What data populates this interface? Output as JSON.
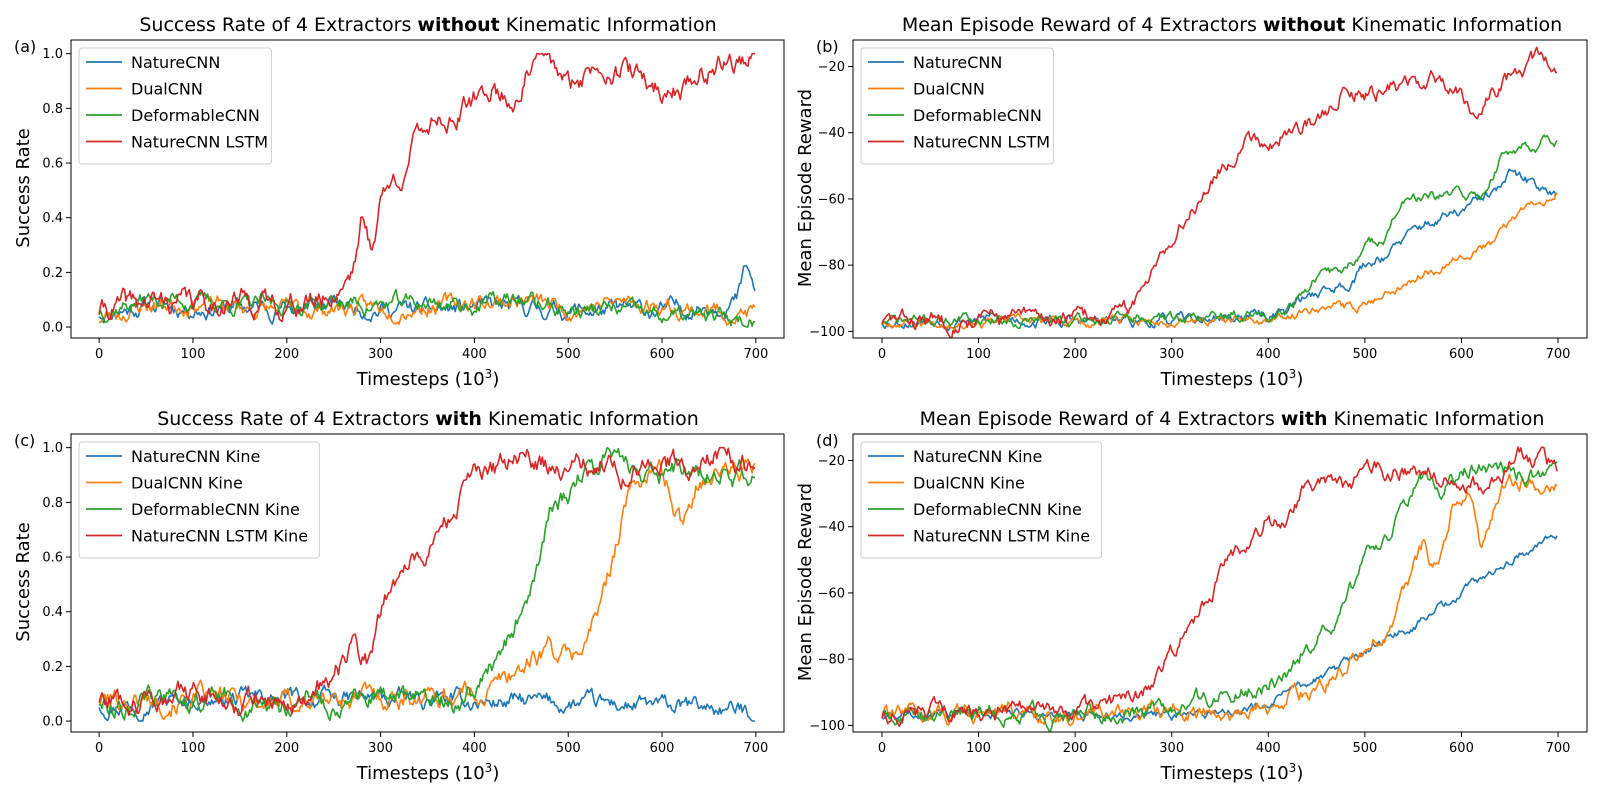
{
  "chart_data": [
    {
      "type": "line",
      "panel_label": "(a)",
      "title_parts": [
        "Success Rate of 4 Extractors ",
        "without",
        " Kinematic Information"
      ],
      "xlabel": "Timesteps (10",
      "xlabel_sup": "3",
      "xlabel_close": ")",
      "ylabel": "Success Rate",
      "xlim": [
        -30,
        730
      ],
      "ylim": [
        -0.04,
        1.05
      ],
      "xticks": [
        0,
        100,
        200,
        300,
        400,
        500,
        600,
        700
      ],
      "yticks": [
        0.0,
        0.2,
        0.4,
        0.6,
        0.8,
        1.0
      ],
      "ytick_labels": [
        "0.0",
        "0.2",
        "0.4",
        "0.6",
        "0.8",
        "1.0"
      ],
      "legend_position": "top-left",
      "series": [
        {
          "name": "NatureCNN",
          "color": "#1f77b4",
          "seed": 11,
          "x": [
            0,
            50,
            100,
            150,
            200,
            250,
            300,
            350,
            400,
            450,
            500,
            550,
            600,
            650,
            680,
            690,
            700
          ],
          "y": [
            0.05,
            0.08,
            0.07,
            0.07,
            0.07,
            0.08,
            0.07,
            0.06,
            0.07,
            0.07,
            0.06,
            0.06,
            0.06,
            0.08,
            0.1,
            0.22,
            0.1
          ],
          "noise": 0.022
        },
        {
          "name": "DualCNN",
          "color": "#ff7f0e",
          "seed": 23,
          "x": [
            0,
            50,
            100,
            150,
            200,
            250,
            300,
            350,
            400,
            450,
            500,
            550,
            600,
            650,
            700
          ],
          "y": [
            0.03,
            0.08,
            0.09,
            0.07,
            0.06,
            0.07,
            0.07,
            0.08,
            0.09,
            0.1,
            0.07,
            0.09,
            0.08,
            0.06,
            0.05
          ],
          "noise": 0.022
        },
        {
          "name": "DeformableCNN",
          "color": "#2ca02c",
          "seed": 37,
          "x": [
            0,
            50,
            100,
            150,
            200,
            250,
            300,
            350,
            400,
            450,
            500,
            550,
            600,
            650,
            700
          ],
          "y": [
            0.06,
            0.1,
            0.1,
            0.08,
            0.08,
            0.09,
            0.08,
            0.09,
            0.08,
            0.1,
            0.06,
            0.06,
            0.04,
            0.03,
            0.03
          ],
          "noise": 0.022
        },
        {
          "name": "NatureCNN LSTM",
          "color": "#d62728",
          "seed": 41,
          "x": [
            0,
            50,
            100,
            150,
            200,
            230,
            250,
            270,
            280,
            290,
            300,
            320,
            340,
            360,
            380,
            400,
            420,
            440,
            460,
            480,
            500,
            520,
            540,
            560,
            580,
            600,
            620,
            640,
            660,
            680,
            700
          ],
          "y": [
            0.06,
            0.09,
            0.09,
            0.1,
            0.08,
            0.09,
            0.12,
            0.22,
            0.4,
            0.28,
            0.48,
            0.55,
            0.7,
            0.78,
            0.76,
            0.82,
            0.88,
            0.82,
            0.95,
            0.97,
            0.87,
            0.93,
            0.97,
            0.94,
            0.9,
            0.86,
            0.88,
            0.92,
            0.97,
            0.97,
            0.98
          ],
          "noise": 0.03
        }
      ]
    },
    {
      "type": "line",
      "panel_label": "(b)",
      "title_parts": [
        "Mean Episode Reward of 4 Extractors ",
        "without",
        " Kinematic Information"
      ],
      "xlabel": "Timesteps (10",
      "xlabel_sup": "3",
      "xlabel_close": ")",
      "ylabel": "Mean Episode Reward",
      "xlim": [
        -30,
        730
      ],
      "ylim": [
        -102,
        -12
      ],
      "xticks": [
        0,
        100,
        200,
        300,
        400,
        500,
        600,
        700
      ],
      "yticks": [
        -100,
        -80,
        -60,
        -40,
        -20
      ],
      "ytick_labels": [
        "−100",
        "−80",
        "−60",
        "−40",
        "−20"
      ],
      "legend_position": "top-left",
      "series": [
        {
          "name": "NatureCNN",
          "color": "#1f77b4",
          "seed": 53,
          "x": [
            0,
            100,
            200,
            300,
            400,
            420,
            450,
            480,
            500,
            530,
            560,
            600,
            640,
            650,
            680,
            700
          ],
          "y": [
            -97,
            -96,
            -97,
            -97,
            -95,
            -93,
            -88,
            -86,
            -80,
            -75,
            -68,
            -64,
            -57,
            -53,
            -56,
            -57
          ],
          "noise": 1.2
        },
        {
          "name": "DualCNN",
          "color": "#ff7f0e",
          "seed": 67,
          "x": [
            0,
            100,
            200,
            300,
            400,
            420,
            450,
            480,
            500,
            520,
            550,
            580,
            600,
            630,
            660,
            700
          ],
          "y": [
            -97,
            -97,
            -97,
            -97,
            -97,
            -96,
            -92,
            -93,
            -92,
            -88,
            -84,
            -80,
            -76,
            -74,
            -64,
            -57
          ],
          "noise": 1.0
        },
        {
          "name": "DeformableCNN",
          "color": "#2ca02c",
          "seed": 71,
          "x": [
            0,
            100,
            200,
            300,
            400,
            420,
            450,
            480,
            500,
            520,
            540,
            560,
            580,
            600,
            620,
            640,
            660,
            700
          ],
          "y": [
            -97,
            -96,
            -97,
            -96,
            -95,
            -92,
            -84,
            -81,
            -75,
            -71,
            -61,
            -60,
            -60,
            -58,
            -60,
            -48,
            -44,
            -42
          ],
          "noise": 1.2
        },
        {
          "name": "NatureCNN LSTM",
          "color": "#d62728",
          "seed": 83,
          "x": [
            0,
            100,
            200,
            250,
            270,
            290,
            300,
            320,
            340,
            360,
            380,
            400,
            420,
            440,
            460,
            480,
            500,
            520,
            540,
            560,
            580,
            600,
            620,
            640,
            660,
            680,
            700
          ],
          "y": [
            -97,
            -96,
            -96,
            -95,
            -88,
            -73,
            -73,
            -63,
            -54,
            -48,
            -40,
            -43,
            -40,
            -37,
            -35,
            -24,
            -28,
            -27,
            -25,
            -26,
            -24,
            -28,
            -34,
            -25,
            -22,
            -18,
            -21
          ],
          "noise": 1.8
        }
      ]
    },
    {
      "type": "line",
      "panel_label": "(c)",
      "title_parts": [
        "Success Rate of 4 Extractors ",
        "with",
        " Kinematic Information"
      ],
      "xlabel": "Timesteps (10",
      "xlabel_sup": "3",
      "xlabel_close": ")",
      "ylabel": "Success Rate",
      "xlim": [
        -30,
        730
      ],
      "ylim": [
        -0.04,
        1.05
      ],
      "xticks": [
        0,
        100,
        200,
        300,
        400,
        500,
        600,
        700
      ],
      "yticks": [
        0.0,
        0.2,
        0.4,
        0.6,
        0.8,
        1.0
      ],
      "ytick_labels": [
        "0.0",
        "0.2",
        "0.4",
        "0.6",
        "0.8",
        "1.0"
      ],
      "legend_position": "top-left",
      "series": [
        {
          "name": "NatureCNN Kine",
          "color": "#1f77b4",
          "seed": 97,
          "x": [
            0,
            100,
            200,
            300,
            400,
            450,
            500,
            550,
            600,
            650,
            700
          ],
          "y": [
            0.06,
            0.08,
            0.08,
            0.08,
            0.07,
            0.07,
            0.06,
            0.06,
            0.05,
            0.05,
            0.03
          ],
          "noise": 0.022
        },
        {
          "name": "DualCNN Kine",
          "color": "#ff7f0e",
          "seed": 101,
          "x": [
            0,
            100,
            200,
            300,
            400,
            420,
            440,
            460,
            480,
            500,
            520,
            540,
            560,
            580,
            600,
            620,
            640,
            660,
            700
          ],
          "y": [
            0.08,
            0.08,
            0.07,
            0.09,
            0.1,
            0.12,
            0.18,
            0.22,
            0.28,
            0.22,
            0.3,
            0.48,
            0.8,
            0.9,
            0.92,
            0.72,
            0.9,
            0.92,
            0.92
          ],
          "noise": 0.028
        },
        {
          "name": "DeformableCNN Kine",
          "color": "#2ca02c",
          "seed": 113,
          "x": [
            0,
            100,
            200,
            300,
            400,
            420,
            440,
            460,
            470,
            480,
            500,
            520,
            540,
            560,
            600,
            650,
            700
          ],
          "y": [
            0.07,
            0.08,
            0.06,
            0.08,
            0.09,
            0.2,
            0.32,
            0.48,
            0.62,
            0.75,
            0.82,
            0.92,
            0.95,
            0.93,
            0.92,
            0.9,
            0.9
          ],
          "noise": 0.028
        },
        {
          "name": "NatureCNN LSTM Kine",
          "color": "#d62728",
          "seed": 127,
          "x": [
            0,
            100,
            200,
            230,
            250,
            270,
            290,
            300,
            320,
            340,
            360,
            380,
            400,
            420,
            440,
            460,
            480,
            500,
            520,
            540,
            560,
            600,
            650,
            700
          ],
          "y": [
            0.08,
            0.1,
            0.07,
            0.09,
            0.16,
            0.25,
            0.22,
            0.4,
            0.55,
            0.6,
            0.68,
            0.78,
            0.88,
            0.9,
            0.95,
            0.96,
            0.94,
            0.92,
            0.93,
            0.95,
            0.92,
            0.93,
            0.96,
            0.96
          ],
          "noise": 0.03
        }
      ]
    },
    {
      "type": "line",
      "panel_label": "(d)",
      "title_parts": [
        "Mean Episode Reward of 4 Extractors ",
        "with",
        " Kinematic Information"
      ],
      "xlabel": "Timesteps (10",
      "xlabel_sup": "3",
      "xlabel_close": ")",
      "ylabel": "Mean Episode Reward",
      "xlim": [
        -30,
        730
      ],
      "ylim": [
        -102,
        -12
      ],
      "xticks": [
        0,
        100,
        200,
        300,
        400,
        500,
        600,
        700
      ],
      "yticks": [
        -100,
        -80,
        -60,
        -40,
        -20
      ],
      "ytick_labels": [
        "−100",
        "−80",
        "−60",
        "−40",
        "−20"
      ],
      "legend_position": "top-left",
      "series": [
        {
          "name": "NatureCNN Kine",
          "color": "#1f77b4",
          "seed": 131,
          "x": [
            0,
            100,
            200,
            300,
            400,
            450,
            500,
            550,
            600,
            650,
            700
          ],
          "y": [
            -97,
            -96,
            -97,
            -97,
            -94,
            -86,
            -78,
            -70,
            -60,
            -50,
            -42
          ],
          "noise": 1.0
        },
        {
          "name": "DualCNN Kine",
          "color": "#ff7f0e",
          "seed": 139,
          "x": [
            0,
            100,
            200,
            300,
            400,
            440,
            480,
            500,
            520,
            540,
            560,
            570,
            590,
            610,
            620,
            640,
            660,
            700
          ],
          "y": [
            -97,
            -96,
            -97,
            -96,
            -95,
            -90,
            -83,
            -78,
            -72,
            -62,
            -46,
            -54,
            -36,
            -30,
            -48,
            -28,
            -26,
            -25
          ],
          "noise": 1.8
        },
        {
          "name": "DeformableCNN Kine",
          "color": "#2ca02c",
          "seed": 149,
          "x": [
            0,
            100,
            200,
            300,
            360,
            400,
            420,
            440,
            460,
            480,
            500,
            520,
            540,
            560,
            580,
            600,
            620,
            660,
            700
          ],
          "y": [
            -97,
            -96,
            -97,
            -95,
            -90,
            -88,
            -84,
            -76,
            -72,
            -65,
            -50,
            -44,
            -35,
            -26,
            -30,
            -24,
            -22,
            -24,
            -26
          ],
          "noise": 1.8
        },
        {
          "name": "NatureCNN LSTM Kine",
          "color": "#d62728",
          "seed": 151,
          "x": [
            0,
            100,
            200,
            230,
            250,
            280,
            300,
            320,
            340,
            360,
            380,
            400,
            420,
            440,
            460,
            480,
            500,
            540,
            580,
            620,
            660,
            700
          ],
          "y": [
            -97,
            -96,
            -96,
            -95,
            -93,
            -88,
            -78,
            -70,
            -60,
            -50,
            -46,
            -37,
            -40,
            -28,
            -26,
            -30,
            -24,
            -22,
            -24,
            -28,
            -18,
            -22
          ],
          "noise": 1.8
        }
      ]
    }
  ]
}
